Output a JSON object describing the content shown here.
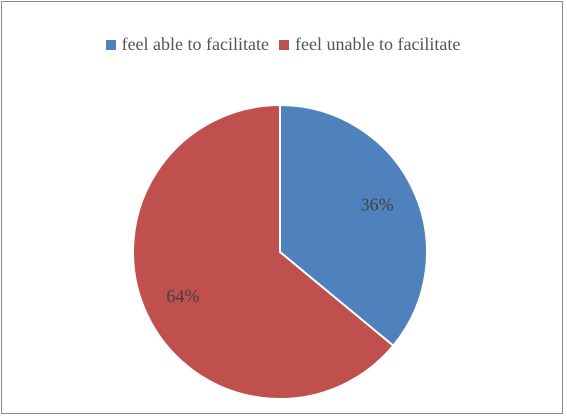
{
  "chart_data": {
    "type": "pie",
    "title": "",
    "legend_position": "top",
    "slices": [
      {
        "name": "feel able to facilitate",
        "value": 36,
        "label": "36%",
        "color": "#4f81bd"
      },
      {
        "name": "feel unable to facilitate",
        "value": 64,
        "label": "64%",
        "color": "#c0504d"
      }
    ]
  }
}
